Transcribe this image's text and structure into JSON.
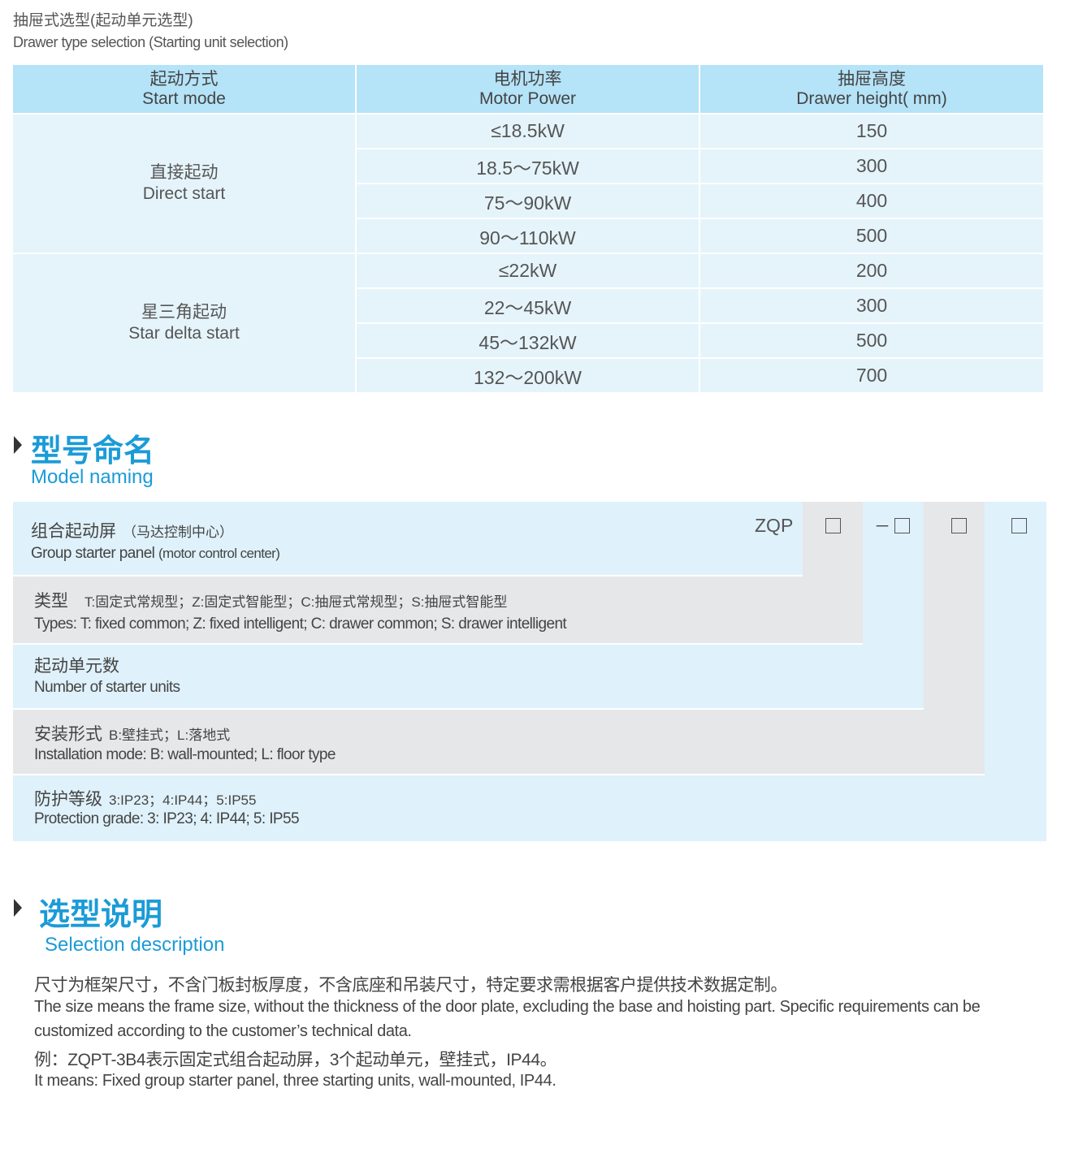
{
  "heading": {
    "zh": "抽屉式选型(起动单元选型)",
    "en": "Drawer type selection (Starting unit selection)"
  },
  "table": {
    "headers": [
      {
        "zh": "起动方式",
        "en": "Start mode"
      },
      {
        "zh": "电机功率",
        "en": "Motor Power"
      },
      {
        "zh": "抽屉高度",
        "en": "Drawer height( mm)"
      }
    ],
    "groups": [
      {
        "zh": "直接起动",
        "en": "Direct start",
        "rows": [
          [
            "≤18.5kW",
            "150"
          ],
          [
            "18.5～75kW",
            "300"
          ],
          [
            "75～90kW",
            "400"
          ],
          [
            "90～110kW",
            "500"
          ]
        ]
      },
      {
        "zh": "星三角起动",
        "en": "Star delta start",
        "rows": [
          [
            "≤22kW",
            "200"
          ],
          [
            "22～45kW",
            "300"
          ],
          [
            "45～132kW",
            "500"
          ],
          [
            "132～200kW",
            "700"
          ]
        ]
      }
    ]
  },
  "model_naming": {
    "title_zh": "型号命名",
    "title_en": "Model naming",
    "code_prefix": "ZQP",
    "dash": "－",
    "rows": [
      {
        "zh": "组合起动屏",
        "zh_note": "（马达控制中心）",
        "en": "Group starter panel",
        "en_note": "(motor control center)"
      },
      {
        "zh": "类型",
        "zh_note": "T:固定式常规型；Z:固定式智能型；C:抽屉式常规型；S:抽屉式智能型",
        "en": "Types: T: fixed common; Z: fixed intelligent; C: drawer common; S: drawer intelligent",
        "en_note": ""
      },
      {
        "zh": "起动单元数",
        "zh_note": "",
        "en": "Number of starter units",
        "en_note": ""
      },
      {
        "zh": "安装形式",
        "zh_note": "B:壁挂式；L:落地式",
        "en": "Installation mode: B: wall-mounted; L: floor type",
        "en_note": ""
      },
      {
        "zh": "防护等级",
        "zh_note": "3:IP23；4:IP44；5:IP55",
        "en": "Protection grade:  3: IP23; 4: IP44; 5: IP55",
        "en_note": ""
      }
    ]
  },
  "selection": {
    "title_zh": "选型说明",
    "title_en": "Selection description",
    "lines": [
      "尺寸为框架尺寸，不含门板封板厚度，不含底座和吊装尺寸，特定要求需根据客户提供技术数据定制。",
      "The size means the frame size, without the thickness of the door plate, excluding the base and hoisting part. Specific requirements can be",
      "customized according to the customer’s technical data.",
      "例：ZQPT-3B4表示固定式组合起动屏，3个起动单元，壁挂式，IP44。",
      "It means: Fixed group starter panel, three starting units, wall-mounted, IP44."
    ]
  },
  "colors": {
    "accent": "#1b9bd7",
    "header_bg": "#b5e3f8",
    "row_bg": "#e5f4fb",
    "gray_bg": "#e6e7e9"
  }
}
